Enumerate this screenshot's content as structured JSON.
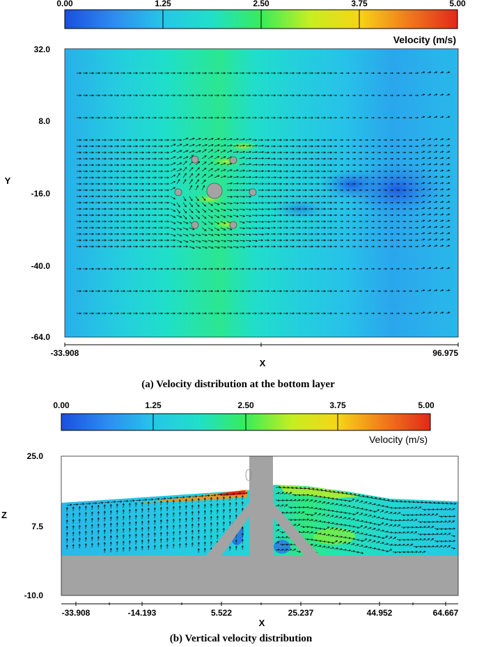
{
  "colors": {
    "scale": [
      "#1a4fe0",
      "#2e8cf0",
      "#26c6e8",
      "#1fe0c8",
      "#38ec5a",
      "#c6ee20",
      "#f6d516",
      "#f07a1c",
      "#e2281a"
    ],
    "solid": "#a3a3a3",
    "arrow": "#111111"
  },
  "chart_data": [
    {
      "type": "heatmap",
      "caption": "(a) Velocity distribution at the bottom layer",
      "colorbar": {
        "title": "Velocity (m/s)",
        "ticks": [
          "0.00",
          "1.25",
          "2.50",
          "3.75",
          "5.00"
        ],
        "range": [
          0,
          5
        ]
      },
      "xlabel": "X",
      "ylabel": "Y",
      "xlim": [
        -33.908,
        96.975
      ],
      "ylim": [
        -64.0,
        32.0
      ],
      "xticks": [
        "-33.908",
        "96.975"
      ],
      "yticks": [
        "32.0",
        "8.0",
        "-16.0",
        "-40.0",
        "-64.0"
      ],
      "field": "velocity magnitude (m/s) with velocity vectors",
      "x": [
        -33.908,
        -15,
        0,
        10,
        18,
        22,
        30,
        45,
        60,
        75,
        90,
        96.975
      ],
      "velocity": [
        1.0,
        1.45,
        1.85,
        2.05,
        2.2,
        2.05,
        1.8,
        1.45,
        1.2,
        0.9,
        1.05,
        1.1
      ],
      "structures": [
        "central pile",
        "six small piles"
      ]
    },
    {
      "type": "heatmap",
      "caption": "(b) Vertical velocity distribution",
      "colorbar": {
        "title": "Velocity (m/s)",
        "ticks": [
          "0.00",
          "1.25",
          "2.50",
          "3.75",
          "5.00"
        ],
        "range": [
          0,
          5
        ]
      },
      "xlabel": "X",
      "ylabel": "Z",
      "xlim": [
        -33.908,
        64.667
      ],
      "ylim": [
        -10.0,
        25.0
      ],
      "xticks": [
        "-33.908",
        "-14.193",
        "5.522",
        "25.237",
        "44.952",
        "64.667"
      ],
      "yticks": [
        "25.0",
        "7.5",
        "-10.0"
      ],
      "field": "velocity magnitude (m/s) in vertical section",
      "peak_velocity": 5.0,
      "structures": [
        "jacket foundation",
        "seabed"
      ]
    }
  ]
}
